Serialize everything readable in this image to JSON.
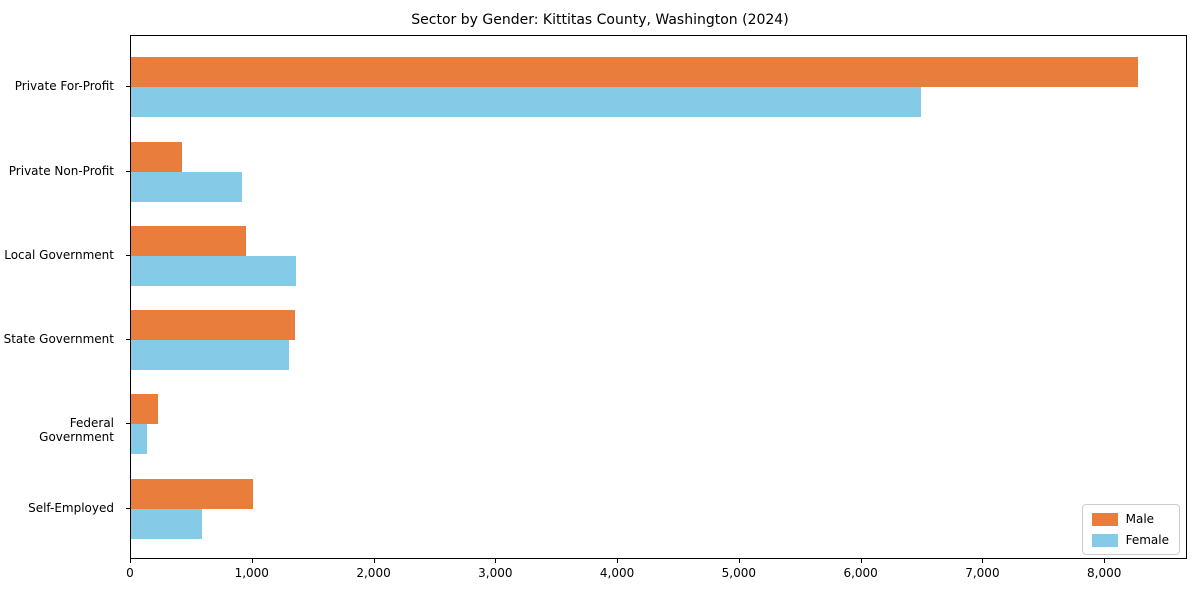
{
  "title": "Sector by Gender: Kittitas County, Washington (2024)",
  "chart_data": {
    "type": "bar",
    "orientation": "horizontal",
    "title": "Sector by Gender: Kittitas County, Washington (2024)",
    "categories": [
      "Private For-Profit",
      "Private Non-Profit",
      "Local Government",
      "State Government",
      "Federal Government",
      "Self-Employed"
    ],
    "series": [
      {
        "name": "Male",
        "color": "#E87D3C",
        "values": [
          8270,
          420,
          945,
          1350,
          225,
          1005
        ]
      },
      {
        "name": "Female",
        "color": "#85CBE8",
        "values": [
          6485,
          910,
          1355,
          1295,
          130,
          585
        ]
      }
    ],
    "xlabel": "",
    "ylabel": "",
    "xlim": [
      0,
      8680
    ],
    "x_ticks": [
      0,
      1000,
      2000,
      3000,
      4000,
      5000,
      6000,
      7000,
      8000
    ],
    "x_tick_labels": [
      "0",
      "1,000",
      "2,000",
      "3,000",
      "4,000",
      "5,000",
      "6,000",
      "7,000",
      "8,000"
    ],
    "grid": false,
    "legend_position": "lower right",
    "background_color": "#ffffff",
    "axis_color": "#000000"
  },
  "legend": {
    "items": [
      {
        "label": "Male",
        "color": "#E87D3C"
      },
      {
        "label": "Female",
        "color": "#85CBE8"
      }
    ]
  }
}
